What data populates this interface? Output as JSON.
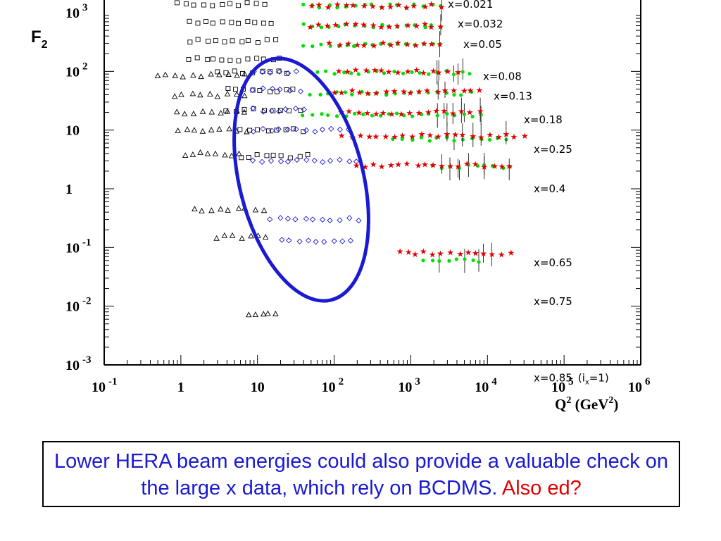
{
  "chart_data": {
    "type": "scatter",
    "title": "",
    "ylabel_main": "F",
    "ylabel_sub": "2",
    "xlabel": "Q",
    "xlabel_sup": "2",
    "xlabel_unit_open": " (GeV",
    "xlabel_unit_sup": "2",
    "xlabel_unit_close": ")",
    "x_scale": "log",
    "y_scale": "log",
    "xlim": [
      0.1,
      1000000
    ],
    "y_ticks": [
      {
        "base": "10",
        "exp": "3",
        "value": 1000
      },
      {
        "base": "10",
        "exp": "2",
        "value": 100
      },
      {
        "base": "10",
        "exp": "",
        "value": 10
      },
      {
        "base": "1",
        "exp": "",
        "value": 1
      },
      {
        "base": "10",
        "exp": "-1",
        "value": 0.1
      },
      {
        "base": "10",
        "exp": "-2",
        "value": 0.01
      },
      {
        "base": "10",
        "exp": "-3",
        "value": 0.001
      }
    ],
    "x_ticks": [
      {
        "base": "10",
        "exp": "-1",
        "value": 0.1
      },
      {
        "base": "1",
        "exp": "",
        "value": 1
      },
      {
        "base": "10",
        "exp": "",
        "value": 10
      },
      {
        "base": "10",
        "exp": "2",
        "value": 100
      },
      {
        "base": "10",
        "exp": "3",
        "value": 1000
      },
      {
        "base": "10",
        "exp": "4",
        "value": 10000
      },
      {
        "base": "10",
        "exp": "5",
        "value": 100000
      },
      {
        "base": "10",
        "exp": "6",
        "value": 1000000
      }
    ],
    "x_bin_labels": [
      {
        "text": "x=0.021",
        "value": 1400
      },
      {
        "text": "x=0.032",
        "value": 640
      },
      {
        "text": "x=0.05",
        "value": 290
      },
      {
        "text": "x=0.08",
        "value": 82
      },
      {
        "text": "x=0.13",
        "value": 38
      },
      {
        "text": "x=0.18",
        "value": 15
      },
      {
        "text": "x=0.25",
        "value": 4.7
      },
      {
        "text": "x=0.4",
        "value": 1.0
      },
      {
        "text": "x=0.65",
        "value": 0.055
      },
      {
        "text": "x=0.75",
        "value": 0.012
      },
      {
        "text": "x=0.85",
        "value": 0.0006
      }
    ],
    "last_bin_extra": {
      "open": "(i",
      "sub": "x",
      "close": "=1)"
    },
    "series": [
      {
        "marker": "triangle",
        "color": "#000000",
        "rows": [
          {
            "y": 85,
            "xmin": 0.5,
            "xmax": 7
          },
          {
            "y": 40,
            "xmin": 0.8,
            "xmax": 7
          },
          {
            "y": 20,
            "xmin": 0.9,
            "xmax": 7
          },
          {
            "y": 10,
            "xmin": 0.9,
            "xmax": 7
          },
          {
            "y": 3.9,
            "xmin": 1.1,
            "xmax": 6
          },
          {
            "y": 0.45,
            "xmin": 1.5,
            "xmax": 12
          },
          {
            "y": 0.15,
            "xmin": 3,
            "xmax": 13
          },
          {
            "y": 0.007,
            "xmin": 8,
            "xmax": 17
          }
        ]
      },
      {
        "marker": "square",
        "color": "#000000",
        "rows": [
          {
            "y": 1400,
            "xmin": 0.9,
            "xmax": 13
          },
          {
            "y": 700,
            "xmin": 1.3,
            "xmax": 15
          },
          {
            "y": 330,
            "xmin": 1.3,
            "xmax": 17
          },
          {
            "y": 160,
            "xmin": 1.3,
            "xmax": 20
          },
          {
            "y": 95,
            "xmin": 3,
            "xmax": 25
          },
          {
            "y": 48,
            "xmin": 4,
            "xmax": 30
          },
          {
            "y": 22,
            "xmin": 4,
            "xmax": 35
          },
          {
            "y": 10,
            "xmin": 6,
            "xmax": 40
          },
          {
            "y": 3.6,
            "xmin": 6,
            "xmax": 45
          }
        ]
      },
      {
        "marker": "diamond",
        "color": "#1a1ad2",
        "rows": [
          {
            "y": 95,
            "xmin": 9,
            "xmax": 32
          },
          {
            "y": 48,
            "xmin": 9,
            "xmax": 35
          },
          {
            "y": 22,
            "xmin": 9,
            "xmax": 40
          },
          {
            "y": 10,
            "xmin": 9,
            "xmax": 160
          },
          {
            "y": 3.0,
            "xmin": 9,
            "xmax": 200
          },
          {
            "y": 0.3,
            "xmin": 15,
            "xmax": 200
          },
          {
            "y": 0.13,
            "xmin": 20,
            "xmax": 170
          }
        ]
      },
      {
        "marker": "dot",
        "color": "#00e000",
        "rows": [
          {
            "y": 1300,
            "xmin": 40,
            "xmax": 2500
          },
          {
            "y": 600,
            "xmin": 40,
            "xmax": 2500
          },
          {
            "y": 280,
            "xmin": 40,
            "xmax": 2500
          },
          {
            "y": 95,
            "xmin": 60,
            "xmax": 6000
          },
          {
            "y": 42,
            "xmin": 50,
            "xmax": 6000
          },
          {
            "y": 18,
            "xmin": 40,
            "xmax": 8000
          },
          {
            "y": 7,
            "xmin": 600,
            "xmax": 18000
          },
          {
            "y": 2.4,
            "xmin": 2000,
            "xmax": 20000
          },
          {
            "y": 0.06,
            "xmin": 1500,
            "xmax": 8000
          }
        ]
      },
      {
        "marker": "star",
        "color": "#e00000",
        "rows": [
          {
            "y": 1300,
            "xmin": 50,
            "xmax": 2500
          },
          {
            "y": 600,
            "xmin": 50,
            "xmax": 2500
          },
          {
            "y": 290,
            "xmin": 90,
            "xmax": 2500
          },
          {
            "y": 100,
            "xmin": 120,
            "xmax": 4000
          },
          {
            "y": 45,
            "xmin": 100,
            "xmax": 8000
          },
          {
            "y": 20,
            "xmin": 120,
            "xmax": 8000
          },
          {
            "y": 8,
            "xmin": 130,
            "xmax": 30000
          },
          {
            "y": 2.5,
            "xmin": 200,
            "xmax": 20000
          },
          {
            "y": 0.08,
            "xmin": 700,
            "xmax": 20000
          }
        ]
      }
    ],
    "highlight": {
      "shape": "ellipse",
      "color": "#1a1ad2"
    }
  },
  "caption": {
    "text_blue": "Lower HERA beam energies could also provide a valuable check on the large x data, which rely on BCDMS.",
    "text_red": "Also ed?"
  }
}
